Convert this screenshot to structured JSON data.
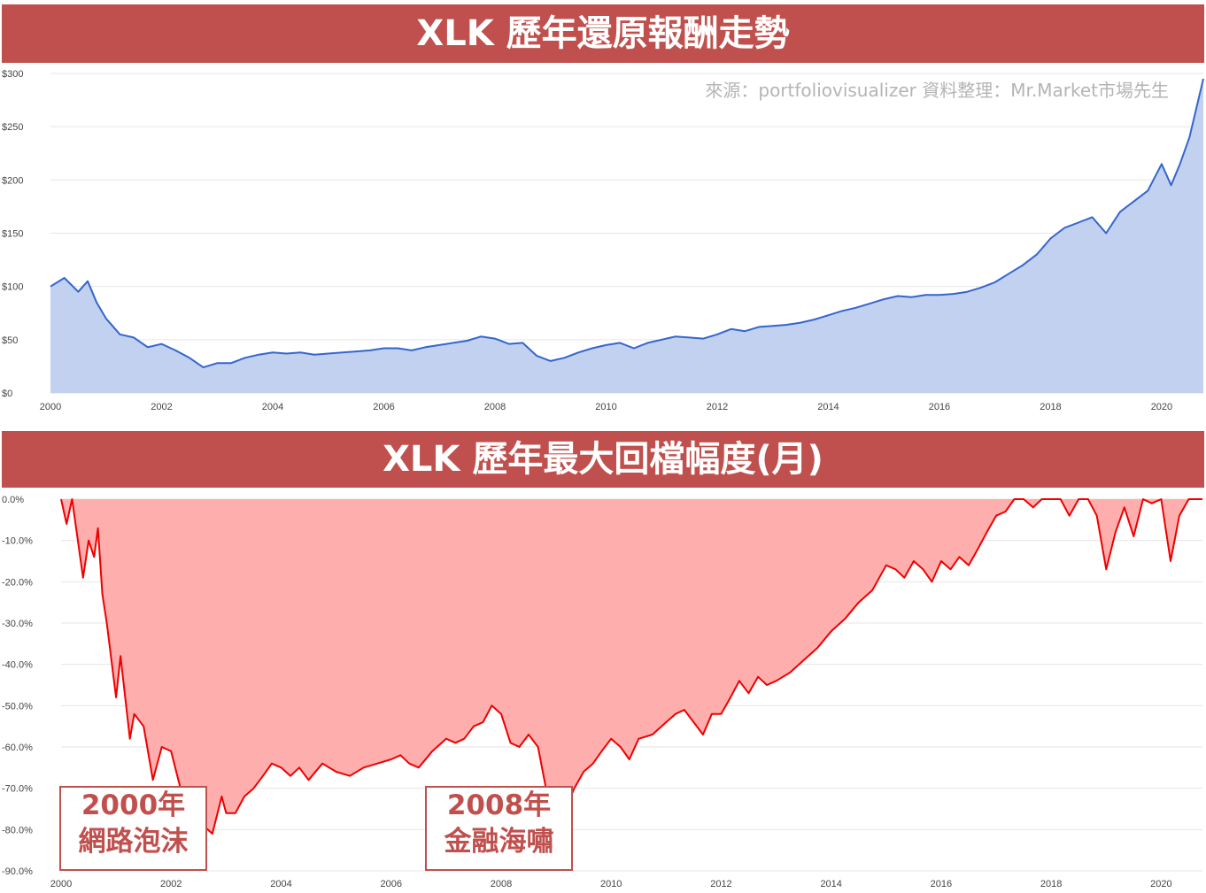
{
  "banners": {
    "top": "XLK 歷年還原報酬走勢",
    "bottom": "XLK 歷年最大回檔幅度(月)"
  },
  "source_note": "來源：portfoliovisualizer 資料整理：Mr.Market市場先生",
  "annotations": [
    {
      "year": "2000年",
      "event": "網路泡沫"
    },
    {
      "year": "2008年",
      "event": "金融海嘯"
    }
  ],
  "colors": {
    "banner": "#c0504d",
    "line1": "#3366cc",
    "fill1": "#c3d1f0",
    "line2": "#ee0000",
    "fill2": "#ffaeae",
    "grid": "#e6e6e6"
  },
  "chart_data": [
    {
      "type": "area",
      "title": "XLK 歷年還原報酬走勢",
      "xlim": [
        2000,
        2020.75
      ],
      "ylim": [
        0,
        300
      ],
      "xticks": [
        "2000",
        "2002",
        "2004",
        "2006",
        "2008",
        "2010",
        "2012",
        "2014",
        "2016",
        "2018",
        "2020"
      ],
      "yticks": [
        "$0",
        "$50",
        "$100",
        "$150",
        "$200",
        "$250",
        "$300"
      ],
      "grid": true,
      "series": [
        {
          "points": [
            [
              2000.0,
              100
            ],
            [
              2000.25,
              108
            ],
            [
              2000.5,
              95
            ],
            [
              2000.67,
              105
            ],
            [
              2000.83,
              85
            ],
            [
              2001.0,
              70
            ],
            [
              2001.25,
              55
            ],
            [
              2001.5,
              52
            ],
            [
              2001.75,
              43
            ],
            [
              2002.0,
              46
            ],
            [
              2002.25,
              40
            ],
            [
              2002.5,
              33
            ],
            [
              2002.75,
              24
            ],
            [
              2003.0,
              28
            ],
            [
              2003.25,
              28
            ],
            [
              2003.5,
              33
            ],
            [
              2003.75,
              36
            ],
            [
              2004.0,
              38
            ],
            [
              2004.25,
              37
            ],
            [
              2004.5,
              38
            ],
            [
              2004.75,
              36
            ],
            [
              2005.0,
              37
            ],
            [
              2005.25,
              38
            ],
            [
              2005.5,
              39
            ],
            [
              2005.75,
              40
            ],
            [
              2006.0,
              42
            ],
            [
              2006.25,
              42
            ],
            [
              2006.5,
              40
            ],
            [
              2006.75,
              43
            ],
            [
              2007.0,
              45
            ],
            [
              2007.25,
              47
            ],
            [
              2007.5,
              49
            ],
            [
              2007.75,
              53
            ],
            [
              2008.0,
              51
            ],
            [
              2008.25,
              46
            ],
            [
              2008.5,
              47
            ],
            [
              2008.75,
              35
            ],
            [
              2009.0,
              30
            ],
            [
              2009.25,
              33
            ],
            [
              2009.5,
              38
            ],
            [
              2009.75,
              42
            ],
            [
              2010.0,
              45
            ],
            [
              2010.25,
              47
            ],
            [
              2010.5,
              42
            ],
            [
              2010.75,
              47
            ],
            [
              2011.0,
              50
            ],
            [
              2011.25,
              53
            ],
            [
              2011.5,
              52
            ],
            [
              2011.75,
              51
            ],
            [
              2012.0,
              55
            ],
            [
              2012.25,
              60
            ],
            [
              2012.5,
              58
            ],
            [
              2012.75,
              62
            ],
            [
              2013.0,
              63
            ],
            [
              2013.25,
              64
            ],
            [
              2013.5,
              66
            ],
            [
              2013.75,
              69
            ],
            [
              2014.0,
              73
            ],
            [
              2014.25,
              77
            ],
            [
              2014.5,
              80
            ],
            [
              2014.75,
              84
            ],
            [
              2015.0,
              88
            ],
            [
              2015.25,
              91
            ],
            [
              2015.5,
              90
            ],
            [
              2015.75,
              92
            ],
            [
              2016.0,
              92
            ],
            [
              2016.25,
              93
            ],
            [
              2016.5,
              95
            ],
            [
              2016.75,
              99
            ],
            [
              2017.0,
              104
            ],
            [
              2017.25,
              112
            ],
            [
              2017.5,
              120
            ],
            [
              2017.75,
              130
            ],
            [
              2018.0,
              145
            ],
            [
              2018.25,
              155
            ],
            [
              2018.5,
              160
            ],
            [
              2018.75,
              165
            ],
            [
              2019.0,
              150
            ],
            [
              2019.25,
              170
            ],
            [
              2019.5,
              180
            ],
            [
              2019.75,
              190
            ],
            [
              2020.0,
              215
            ],
            [
              2020.17,
              195
            ],
            [
              2020.33,
              215
            ],
            [
              2020.5,
              240
            ],
            [
              2020.75,
              295
            ]
          ]
        }
      ]
    },
    {
      "type": "area",
      "title": "XLK 歷年最大回檔幅度(月)",
      "xlim": [
        2000,
        2020.75
      ],
      "ylim": [
        -90,
        0
      ],
      "xticks": [
        "2000",
        "2002",
        "2004",
        "2006",
        "2008",
        "2010",
        "2012",
        "2014",
        "2016",
        "2018",
        "2020"
      ],
      "yticks": [
        "0.0%",
        "-10.0%",
        "-20.0%",
        "-30.0%",
        "-40.0%",
        "-50.0%",
        "-60.0%",
        "-70.0%",
        "-80.0%",
        "-90.0%"
      ],
      "grid": true,
      "series": [
        {
          "points": [
            [
              2000.0,
              0
            ],
            [
              2000.1,
              -6
            ],
            [
              2000.2,
              0
            ],
            [
              2000.4,
              -19
            ],
            [
              2000.5,
              -10
            ],
            [
              2000.6,
              -14
            ],
            [
              2000.67,
              -7
            ],
            [
              2000.75,
              -23
            ],
            [
              2000.83,
              -30
            ],
            [
              2001.0,
              -48
            ],
            [
              2001.08,
              -38
            ],
            [
              2001.25,
              -58
            ],
            [
              2001.33,
              -52
            ],
            [
              2001.5,
              -55
            ],
            [
              2001.67,
              -68
            ],
            [
              2001.83,
              -60
            ],
            [
              2002.0,
              -61
            ],
            [
              2002.17,
              -70
            ],
            [
              2002.33,
              -71
            ],
            [
              2002.5,
              -78
            ],
            [
              2002.75,
              -81
            ],
            [
              2002.92,
              -72
            ],
            [
              2003.0,
              -76
            ],
            [
              2003.17,
              -76
            ],
            [
              2003.33,
              -72
            ],
            [
              2003.5,
              -70
            ],
            [
              2003.67,
              -67
            ],
            [
              2003.83,
              -64
            ],
            [
              2004.0,
              -65
            ],
            [
              2004.17,
              -67
            ],
            [
              2004.33,
              -65
            ],
            [
              2004.5,
              -68
            ],
            [
              2004.75,
              -64
            ],
            [
              2005.0,
              -66
            ],
            [
              2005.25,
              -67
            ],
            [
              2005.5,
              -65
            ],
            [
              2005.75,
              -64
            ],
            [
              2006.0,
              -63
            ],
            [
              2006.17,
              -62
            ],
            [
              2006.33,
              -64
            ],
            [
              2006.5,
              -65
            ],
            [
              2006.75,
              -61
            ],
            [
              2007.0,
              -58
            ],
            [
              2007.17,
              -59
            ],
            [
              2007.33,
              -58
            ],
            [
              2007.5,
              -55
            ],
            [
              2007.67,
              -54
            ],
            [
              2007.83,
              -50
            ],
            [
              2008.0,
              -52
            ],
            [
              2008.17,
              -59
            ],
            [
              2008.33,
              -60
            ],
            [
              2008.5,
              -57
            ],
            [
              2008.67,
              -60
            ],
            [
              2008.83,
              -71
            ],
            [
              2009.0,
              -73
            ],
            [
              2009.17,
              -75
            ],
            [
              2009.33,
              -70
            ],
            [
              2009.5,
              -66
            ],
            [
              2009.67,
              -64
            ],
            [
              2009.83,
              -61
            ],
            [
              2010.0,
              -58
            ],
            [
              2010.17,
              -60
            ],
            [
              2010.33,
              -63
            ],
            [
              2010.5,
              -58
            ],
            [
              2010.75,
              -57
            ],
            [
              2011.0,
              -54
            ],
            [
              2011.17,
              -52
            ],
            [
              2011.33,
              -51
            ],
            [
              2011.5,
              -54
            ],
            [
              2011.67,
              -57
            ],
            [
              2011.83,
              -52
            ],
            [
              2012.0,
              -52
            ],
            [
              2012.17,
              -48
            ],
            [
              2012.33,
              -44
            ],
            [
              2012.5,
              -47
            ],
            [
              2012.67,
              -43
            ],
            [
              2012.83,
              -45
            ],
            [
              2013.0,
              -44
            ],
            [
              2013.25,
              -42
            ],
            [
              2013.5,
              -39
            ],
            [
              2013.75,
              -36
            ],
            [
              2014.0,
              -32
            ],
            [
              2014.25,
              -29
            ],
            [
              2014.5,
              -25
            ],
            [
              2014.75,
              -22
            ],
            [
              2015.0,
              -16
            ],
            [
              2015.17,
              -17
            ],
            [
              2015.33,
              -19
            ],
            [
              2015.5,
              -15
            ],
            [
              2015.67,
              -17
            ],
            [
              2015.83,
              -20
            ],
            [
              2016.0,
              -15
            ],
            [
              2016.17,
              -17
            ],
            [
              2016.33,
              -14
            ],
            [
              2016.5,
              -16
            ],
            [
              2016.67,
              -12
            ],
            [
              2016.83,
              -8
            ],
            [
              2017.0,
              -4
            ],
            [
              2017.17,
              -3
            ],
            [
              2017.33,
              0
            ],
            [
              2017.5,
              0
            ],
            [
              2017.67,
              -2
            ],
            [
              2017.83,
              0
            ],
            [
              2018.0,
              0
            ],
            [
              2018.17,
              0
            ],
            [
              2018.33,
              -4
            ],
            [
              2018.5,
              0
            ],
            [
              2018.67,
              0
            ],
            [
              2018.83,
              -4
            ],
            [
              2019.0,
              -17
            ],
            [
              2019.17,
              -8
            ],
            [
              2019.33,
              -2
            ],
            [
              2019.5,
              -9
            ],
            [
              2019.67,
              0
            ],
            [
              2019.83,
              -1
            ],
            [
              2020.0,
              0
            ],
            [
              2020.17,
              -15
            ],
            [
              2020.33,
              -4
            ],
            [
              2020.5,
              0
            ],
            [
              2020.75,
              0
            ]
          ]
        }
      ]
    }
  ]
}
